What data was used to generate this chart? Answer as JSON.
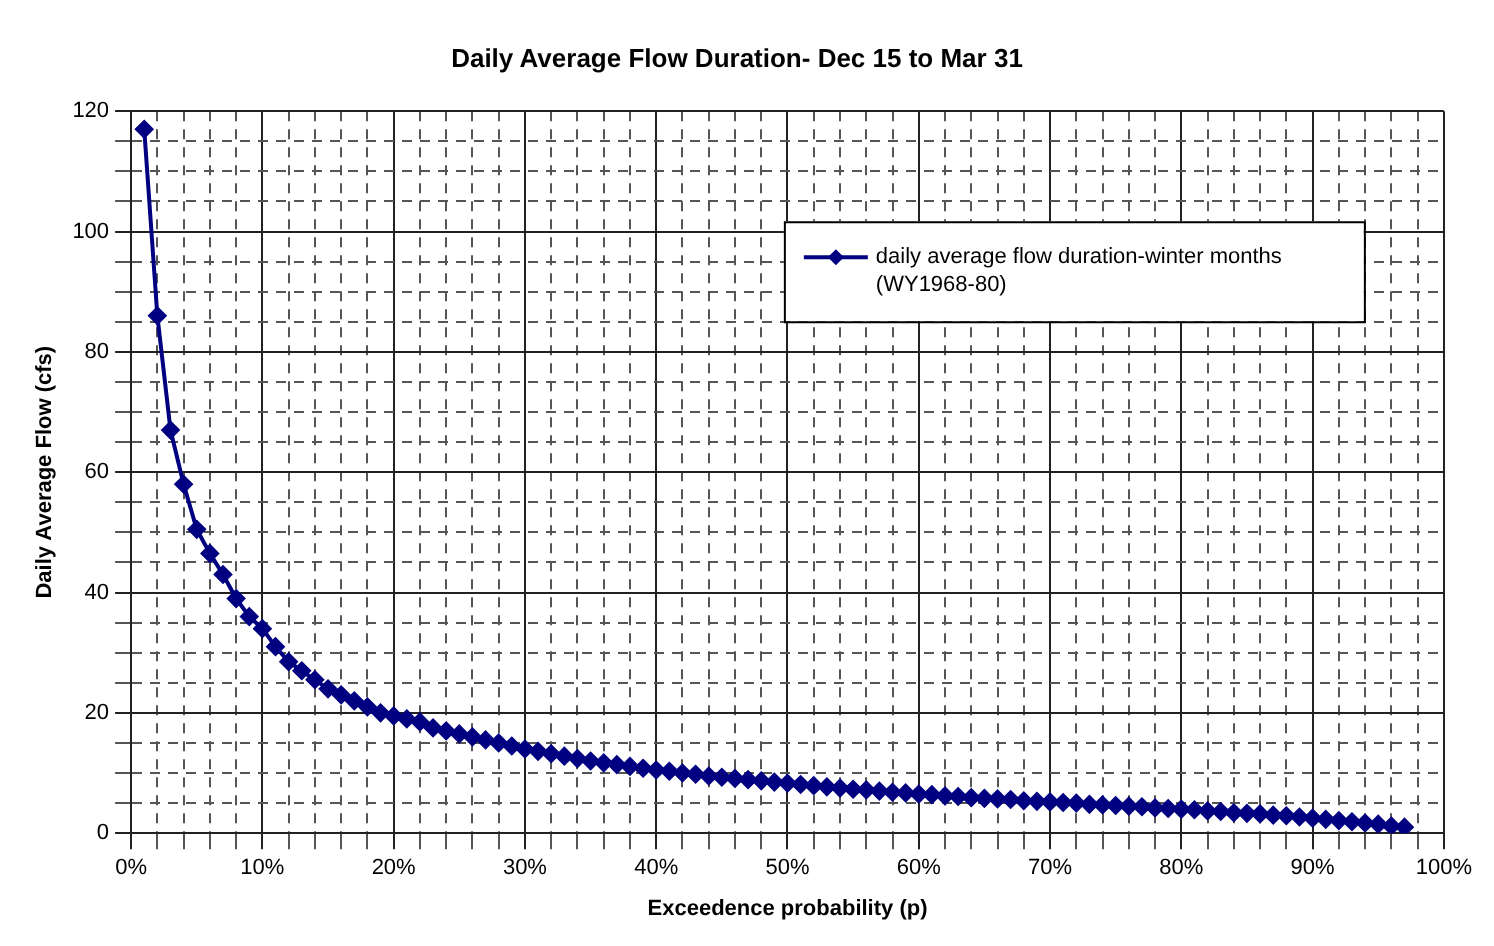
{
  "chart_data": {
    "type": "line",
    "title": "Daily Average Flow Duration- Dec 15 to Mar 31",
    "xlabel": "Exceedence probability (p)",
    "ylabel": "Daily Average Flow (cfs)",
    "x": [
      1,
      2,
      3,
      4,
      5,
      6,
      7,
      8,
      9,
      10,
      11,
      12,
      13,
      14,
      15,
      16,
      17,
      18,
      19,
      20,
      21,
      22,
      23,
      24,
      25,
      26,
      27,
      28,
      29,
      30,
      31,
      32,
      33,
      34,
      35,
      36,
      37,
      38,
      39,
      40,
      41,
      42,
      43,
      44,
      45,
      46,
      47,
      48,
      49,
      50,
      51,
      52,
      53,
      54,
      55,
      56,
      57,
      58,
      59,
      60,
      61,
      62,
      63,
      64,
      65,
      66,
      67,
      68,
      69,
      70,
      71,
      72,
      73,
      74,
      75,
      76,
      77,
      78,
      79,
      80,
      81,
      82,
      83,
      84,
      85,
      86,
      87,
      88,
      89,
      90,
      91,
      92,
      93,
      94,
      95,
      96,
      97
    ],
    "series": [
      {
        "name": "daily average flow duration-winter months (WY1968-80)",
        "color": "#000080",
        "values": [
          117,
          86,
          67,
          58,
          50.5,
          46.5,
          43,
          39,
          36,
          34,
          31,
          28.5,
          27,
          25.5,
          24,
          23,
          22,
          21,
          20,
          19.5,
          19,
          18.5,
          17.5,
          17,
          16.5,
          16,
          15.5,
          15,
          14.5,
          14,
          13.6,
          13.2,
          12.8,
          12.4,
          12,
          11.7,
          11.4,
          11.1,
          10.8,
          10.5,
          10.3,
          10,
          9.8,
          9.5,
          9.3,
          9.1,
          8.9,
          8.7,
          8.5,
          8.3,
          8.1,
          7.9,
          7.7,
          7.5,
          7.3,
          7.2,
          7,
          6.8,
          6.7,
          6.5,
          6.4,
          6.2,
          6.1,
          5.9,
          5.8,
          5.7,
          5.6,
          5.4,
          5.3,
          5.2,
          5.1,
          5,
          4.8,
          4.7,
          4.6,
          4.5,
          4.4,
          4.2,
          4.1,
          4,
          3.9,
          3.7,
          3.6,
          3.4,
          3.3,
          3.2,
          3,
          2.9,
          2.7,
          2.5,
          2.3,
          2.1,
          1.9,
          1.7,
          1.5,
          1.2,
          1
        ]
      }
    ],
    "xlim": [
      0,
      100
    ],
    "ylim": [
      0,
      120
    ],
    "xticks": [
      {
        "value": 0,
        "label": "0%"
      },
      {
        "value": 2,
        "label": null
      },
      {
        "value": 4,
        "label": null
      },
      {
        "value": 6,
        "label": null
      },
      {
        "value": 8,
        "label": null
      },
      {
        "value": 10,
        "label": "10%"
      },
      {
        "value": 12,
        "label": null
      },
      {
        "value": 14,
        "label": null
      },
      {
        "value": 16,
        "label": null
      },
      {
        "value": 18,
        "label": null
      },
      {
        "value": 20,
        "label": "20%"
      },
      {
        "value": 22,
        "label": null
      },
      {
        "value": 24,
        "label": null
      },
      {
        "value": 26,
        "label": null
      },
      {
        "value": 28,
        "label": null
      },
      {
        "value": 30,
        "label": "30%"
      },
      {
        "value": 32,
        "label": null
      },
      {
        "value": 34,
        "label": null
      },
      {
        "value": 36,
        "label": null
      },
      {
        "value": 38,
        "label": null
      },
      {
        "value": 40,
        "label": "40%"
      },
      {
        "value": 42,
        "label": null
      },
      {
        "value": 44,
        "label": null
      },
      {
        "value": 46,
        "label": null
      },
      {
        "value": 48,
        "label": null
      },
      {
        "value": 50,
        "label": "50%"
      },
      {
        "value": 52,
        "label": null
      },
      {
        "value": 54,
        "label": null
      },
      {
        "value": 56,
        "label": null
      },
      {
        "value": 58,
        "label": null
      },
      {
        "value": 60,
        "label": "60%"
      },
      {
        "value": 62,
        "label": null
      },
      {
        "value": 64,
        "label": null
      },
      {
        "value": 66,
        "label": null
      },
      {
        "value": 68,
        "label": null
      },
      {
        "value": 70,
        "label": "70%"
      },
      {
        "value": 72,
        "label": null
      },
      {
        "value": 74,
        "label": null
      },
      {
        "value": 76,
        "label": null
      },
      {
        "value": 78,
        "label": null
      },
      {
        "value": 80,
        "label": "80%"
      },
      {
        "value": 82,
        "label": null
      },
      {
        "value": 84,
        "label": null
      },
      {
        "value": 86,
        "label": null
      },
      {
        "value": 88,
        "label": null
      },
      {
        "value": 90,
        "label": "90%"
      },
      {
        "value": 92,
        "label": null
      },
      {
        "value": 94,
        "label": null
      },
      {
        "value": 96,
        "label": null
      },
      {
        "value": 98,
        "label": null
      },
      {
        "value": 100,
        "label": "100%"
      }
    ],
    "yticks": [
      0,
      {
        "value": 5,
        "label": null
      },
      {
        "value": 10,
        "label": null
      },
      {
        "value": 15,
        "label": null
      },
      20,
      {
        "value": 25,
        "label": null
      },
      {
        "value": 30,
        "label": null
      },
      {
        "value": 35,
        "label": null
      },
      40,
      {
        "value": 45,
        "label": null
      },
      {
        "value": 50,
        "label": null
      },
      {
        "value": 55,
        "label": null
      },
      60,
      {
        "value": 65,
        "label": null
      },
      {
        "value": 70,
        "label": null
      },
      {
        "value": 75,
        "label": null
      },
      80,
      {
        "value": 85,
        "label": null
      },
      {
        "value": 90,
        "label": null
      },
      {
        "value": 95,
        "label": null
      },
      100,
      {
        "value": 105,
        "label": null
      },
      {
        "value": 110,
        "label": null
      },
      {
        "value": 115,
        "label": null
      },
      120
    ],
    "grid": true,
    "legend": "top right",
    "marker": "diamond",
    "line_style": "solid"
  }
}
